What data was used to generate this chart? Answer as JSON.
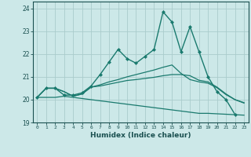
{
  "xlabel": "Humidex (Indice chaleur)",
  "xlim": [
    -0.5,
    23.5
  ],
  "ylim": [
    19.0,
    24.3
  ],
  "yticks": [
    19,
    20,
    21,
    22,
    23,
    24
  ],
  "xticks": [
    0,
    1,
    2,
    3,
    4,
    5,
    6,
    7,
    8,
    9,
    10,
    11,
    12,
    13,
    14,
    15,
    16,
    17,
    18,
    19,
    20,
    21,
    22,
    23
  ],
  "background_color": "#cce8e8",
  "grid_color": "#aacccc",
  "line_color": "#1a7a6e",
  "lines": [
    {
      "x": [
        0,
        1,
        2,
        3,
        4,
        5,
        6,
        7,
        8,
        9,
        10,
        11,
        12,
        13,
        14,
        15,
        16,
        17,
        18,
        19,
        20,
        21,
        22
      ],
      "y": [
        20.1,
        20.5,
        20.5,
        20.2,
        20.2,
        20.3,
        20.6,
        21.1,
        21.65,
        22.2,
        21.8,
        21.6,
        21.9,
        22.2,
        23.85,
        23.4,
        22.1,
        23.2,
        22.1,
        21.0,
        20.35,
        20.0,
        19.35
      ],
      "marker": "D",
      "markersize": 2.0,
      "linewidth": 1.0
    },
    {
      "x": [
        0,
        1,
        2,
        3,
        4,
        5,
        6,
        7,
        8,
        9,
        10,
        11,
        12,
        13,
        14,
        15,
        16,
        17,
        18,
        19,
        20,
        21,
        22,
        23
      ],
      "y": [
        20.1,
        20.5,
        20.5,
        20.35,
        20.15,
        20.25,
        20.55,
        20.6,
        20.68,
        20.76,
        20.84,
        20.88,
        20.93,
        20.98,
        21.05,
        21.1,
        21.1,
        21.05,
        20.85,
        20.78,
        20.55,
        20.25,
        20.0,
        19.85
      ],
      "marker": null,
      "markersize": 0,
      "linewidth": 0.9
    },
    {
      "x": [
        0,
        1,
        2,
        3,
        4,
        5,
        6,
        7,
        8,
        9,
        10,
        11,
        12,
        13,
        14,
        15,
        16,
        17,
        18,
        19,
        20,
        21,
        22,
        23
      ],
      "y": [
        20.1,
        20.5,
        20.5,
        20.35,
        20.15,
        20.25,
        20.55,
        20.65,
        20.78,
        20.88,
        21.0,
        21.1,
        21.2,
        21.3,
        21.42,
        21.52,
        21.15,
        20.88,
        20.78,
        20.72,
        20.52,
        20.22,
        20.0,
        19.87
      ],
      "marker": null,
      "markersize": 0,
      "linewidth": 0.9
    },
    {
      "x": [
        0,
        1,
        2,
        3,
        4,
        5,
        6,
        7,
        8,
        9,
        10,
        11,
        12,
        13,
        14,
        15,
        16,
        17,
        18,
        19,
        20,
        21,
        22,
        23
      ],
      "y": [
        20.1,
        20.1,
        20.1,
        20.15,
        20.1,
        20.05,
        20.0,
        19.95,
        19.9,
        19.85,
        19.8,
        19.75,
        19.7,
        19.65,
        19.6,
        19.55,
        19.5,
        19.45,
        19.4,
        19.4,
        19.38,
        19.36,
        19.34,
        19.32
      ],
      "marker": null,
      "markersize": 0,
      "linewidth": 0.9
    }
  ]
}
